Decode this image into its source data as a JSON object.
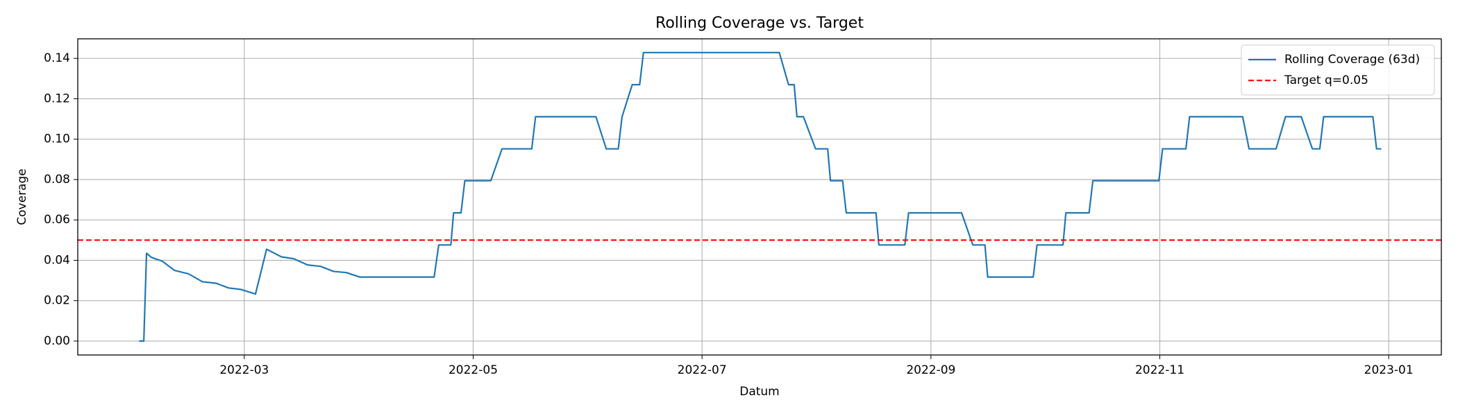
{
  "chart_data": {
    "type": "line",
    "title": "Rolling Coverage vs. Target",
    "xlabel": "Datum",
    "ylabel": "Coverage",
    "x": [
      2.081,
      2.122,
      2.146,
      2.187,
      2.285,
      2.39,
      2.512,
      2.634,
      2.756,
      2.862,
      2.967,
      3.098,
      3.195,
      3.325,
      3.431,
      3.553,
      3.667,
      3.78,
      3.894,
      4.008,
      4.659,
      4.699,
      4.805,
      4.829,
      4.894,
      4.927,
      5.154,
      5.252,
      5.512,
      5.545,
      6.073,
      6.163,
      6.268,
      6.301,
      6.39,
      6.455,
      6.488,
      7.675,
      7.756,
      7.805,
      7.829,
      7.886,
      7.992,
      8.098,
      8.122,
      8.228,
      8.26,
      8.52,
      8.545,
      8.772,
      8.805,
      9.268,
      9.366,
      9.472,
      9.496,
      9.894,
      9.927,
      10.154,
      10.179,
      10.382,
      10.415,
      10.992,
      11.024,
      11.228,
      11.26,
      11.724,
      11.78,
      12.016,
      12.098,
      12.236,
      12.333,
      12.398,
      12.431,
      12.862,
      12.894,
      12.935
    ],
    "series": [
      {
        "name": "Rolling Coverage (63d)",
        "color": "#1f77b4",
        "values": [
          0,
          0,
          0.0435,
          0.0415,
          0.0395,
          0.035,
          0.0333,
          0.0294,
          0.0286,
          0.0263,
          0.0256,
          0.0233,
          0.0455,
          0.0417,
          0.0408,
          0.0377,
          0.037,
          0.0345,
          0.0339,
          0.0317,
          0.0317,
          0.0476,
          0.0476,
          0.0635,
          0.0635,
          0.0794,
          0.0794,
          0.0952,
          0.0952,
          0.1111,
          0.1111,
          0.0952,
          0.0952,
          0.1111,
          0.127,
          0.127,
          0.1429,
          0.1429,
          0.127,
          0.127,
          0.1111,
          0.1111,
          0.0952,
          0.0952,
          0.0794,
          0.0794,
          0.0635,
          0.0635,
          0.0476,
          0.0476,
          0.0635,
          0.0635,
          0.0476,
          0.0476,
          0.0317,
          0.0317,
          0.0476,
          0.0476,
          0.0635,
          0.0635,
          0.0794,
          0.0794,
          0.0952,
          0.0952,
          0.1111,
          0.1111,
          0.0952,
          0.0952,
          0.1111,
          0.1111,
          0.0952,
          0.0952,
          0.1111,
          0.1111,
          0.0952,
          0.0952
        ]
      }
    ],
    "reference_line": {
      "name": "Target q=0.05",
      "value": 0.05,
      "color": "#ff0000",
      "style": "dashed"
    },
    "xlim": [
      1.545,
      13.46
    ],
    "xticks": [
      {
        "value": 3,
        "label": "2022-03"
      },
      {
        "value": 5,
        "label": "2022-05"
      },
      {
        "value": 7,
        "label": "2022-07"
      },
      {
        "value": 9,
        "label": "2022-09"
      },
      {
        "value": 11,
        "label": "2022-11"
      },
      {
        "value": 13,
        "label": "2023-01"
      }
    ],
    "ylim": [
      -0.0069,
      0.1497
    ],
    "yticks": [
      {
        "value": 0,
        "label": "0.00"
      },
      {
        "value": 0.02,
        "label": "0.02"
      },
      {
        "value": 0.04,
        "label": "0.04"
      },
      {
        "value": 0.06,
        "label": "0.06"
      },
      {
        "value": 0.08,
        "label": "0.08"
      },
      {
        "value": 0.1,
        "label": "0.10"
      },
      {
        "value": 0.12,
        "label": "0.12"
      },
      {
        "value": 0.14,
        "label": "0.14"
      }
    ],
    "grid": true,
    "legend": "upper right"
  }
}
